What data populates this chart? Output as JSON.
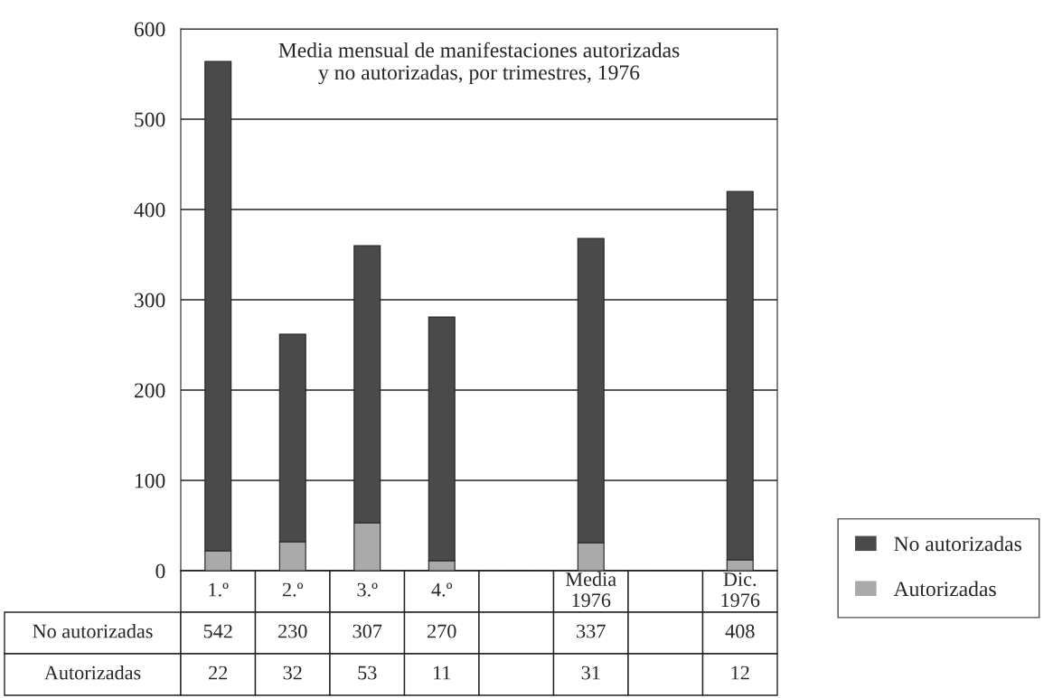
{
  "chart_data": {
    "type": "bar",
    "title": "Media mensual de manifestaciones autorizadas\ny no autorizadas, por trimestres, 1976",
    "categories": [
      "1.º",
      "2.º",
      "3.º",
      "4.º",
      null,
      "Media\n1976",
      null,
      "Dic.\n1976"
    ],
    "stacked": true,
    "series": [
      {
        "name": "Autorizadas",
        "color": "#aaaaaa",
        "values": [
          22,
          32,
          53,
          11,
          null,
          31,
          null,
          12
        ]
      },
      {
        "name": "No autorizadas",
        "color": "#4a4a4a",
        "values": [
          542,
          230,
          307,
          270,
          null,
          337,
          null,
          408
        ]
      }
    ],
    "ylim": [
      0,
      600
    ],
    "yticks": [
      0,
      100,
      200,
      300,
      400,
      500,
      600
    ],
    "grid": "y",
    "legend": "bottom right",
    "data_labels": true
  }
}
